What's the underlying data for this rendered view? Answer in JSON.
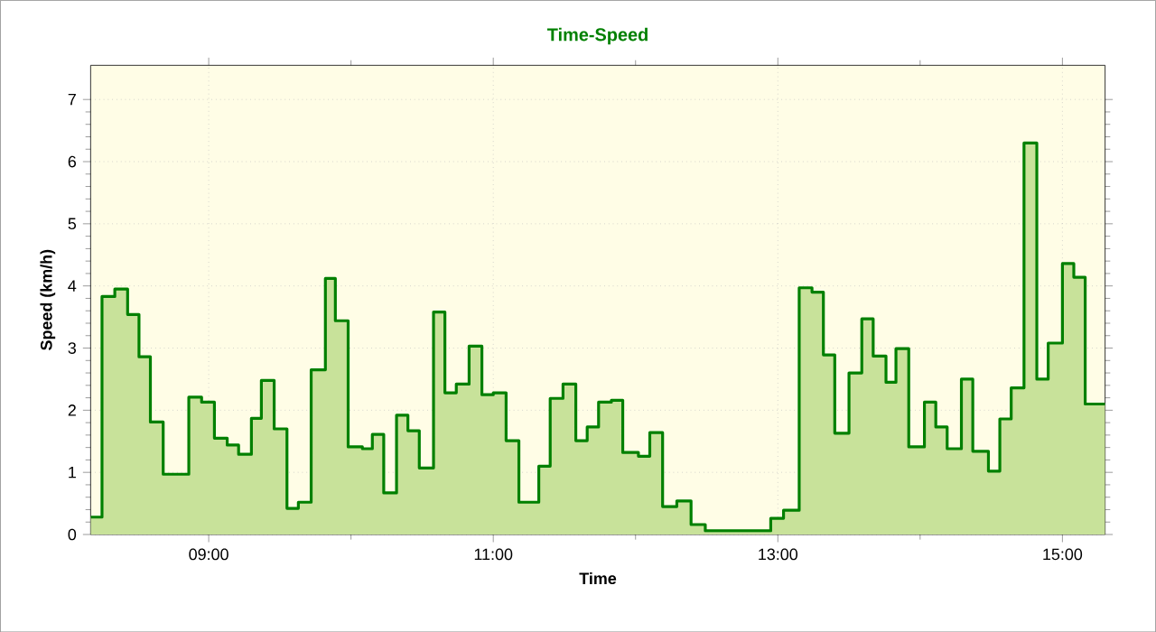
{
  "chart_data": {
    "type": "area",
    "title": "Time-Speed",
    "xlabel": "Time",
    "ylabel": "Speed (km/h)",
    "x": [
      8.17,
      8.25,
      8.25,
      8.34,
      8.34,
      8.43,
      8.43,
      8.51,
      8.51,
      8.59,
      8.59,
      8.68,
      8.68,
      8.86,
      8.86,
      8.95,
      8.95,
      9.04,
      9.04,
      9.13,
      9.13,
      9.21,
      9.21,
      9.3,
      9.3,
      9.37,
      9.37,
      9.46,
      9.46,
      9.55,
      9.55,
      9.63,
      9.63,
      9.72,
      9.72,
      9.82,
      9.82,
      9.89,
      9.89,
      9.98,
      9.98,
      10.08,
      10.08,
      10.15,
      10.15,
      10.23,
      10.23,
      10.32,
      10.32,
      10.4,
      10.4,
      10.48,
      10.48,
      10.58,
      10.58,
      10.66,
      10.66,
      10.74,
      10.74,
      10.83,
      10.83,
      10.92,
      10.92,
      11.0,
      11.0,
      11.09,
      11.09,
      11.18,
      11.18,
      11.32,
      11.32,
      11.4,
      11.4,
      11.49,
      11.49,
      11.58,
      11.58,
      11.66,
      11.66,
      11.74,
      11.74,
      11.83,
      11.83,
      11.91,
      11.91,
      12.02,
      12.02,
      12.1,
      12.1,
      12.19,
      12.19,
      12.29,
      12.29,
      12.39,
      12.39,
      12.49,
      12.49,
      12.95,
      12.95,
      13.04,
      13.04,
      13.15,
      13.15,
      13.24,
      13.24,
      13.32,
      13.32,
      13.4,
      13.4,
      13.5,
      13.5,
      13.59,
      13.59,
      13.67,
      13.67,
      13.76,
      13.76,
      13.83,
      13.83,
      13.92,
      13.92,
      14.03,
      14.03,
      14.11,
      14.11,
      14.19,
      14.19,
      14.29,
      14.29,
      14.37,
      14.37,
      14.48,
      14.48,
      14.56,
      14.56,
      14.64,
      14.64,
      14.73,
      14.73,
      14.82,
      14.82,
      14.9,
      14.9,
      15.0,
      15.0,
      15.08,
      15.08,
      15.16,
      15.16,
      15.3
    ],
    "series": [
      {
        "color": "#008000",
        "values": [
          0.28,
          0.28,
          3.83,
          3.83,
          3.95,
          3.95,
          3.54,
          3.54,
          2.86,
          2.86,
          1.81,
          1.81,
          0.97,
          0.97,
          2.21,
          2.21,
          2.13,
          2.13,
          1.55,
          1.55,
          1.44,
          1.44,
          1.29,
          1.29,
          1.87,
          1.87,
          2.48,
          2.48,
          1.7,
          1.7,
          0.42,
          0.42,
          0.52,
          0.52,
          2.65,
          2.65,
          4.12,
          4.12,
          3.44,
          3.44,
          1.41,
          1.41,
          1.38,
          1.38,
          1.61,
          1.61,
          0.67,
          0.67,
          1.92,
          1.92,
          1.67,
          1.67,
          1.07,
          1.07,
          3.58,
          3.58,
          2.28,
          2.28,
          2.42,
          2.42,
          3.03,
          3.03,
          2.25,
          2.25,
          2.28,
          2.28,
          1.51,
          1.51,
          0.52,
          0.52,
          1.1,
          1.1,
          2.19,
          2.19,
          2.42,
          2.42,
          1.51,
          1.51,
          1.73,
          1.73,
          2.13,
          2.13,
          2.16,
          2.16,
          1.32,
          1.32,
          1.26,
          1.26,
          1.64,
          1.64,
          0.45,
          0.45,
          0.54,
          0.54,
          0.16,
          0.16,
          0.06,
          0.06,
          0.26,
          0.26,
          0.39,
          0.39,
          3.97,
          3.97,
          3.9,
          3.9,
          2.89,
          2.89,
          1.63,
          1.63,
          2.6,
          2.6,
          3.47,
          3.47,
          2.87,
          2.87,
          2.45,
          2.45,
          2.99,
          2.99,
          1.41,
          1.41,
          2.13,
          2.13,
          1.73,
          1.73,
          1.38,
          1.38,
          2.5,
          2.5,
          1.34,
          1.34,
          1.02,
          1.02,
          1.86,
          1.86,
          2.36,
          2.36,
          6.3,
          6.3,
          2.5,
          2.5,
          3.08,
          3.08,
          4.36,
          4.36,
          4.14,
          4.14,
          2.1,
          2.1
        ]
      }
    ],
    "xlim": [
      8.17,
      15.3
    ],
    "xticks": [
      {
        "value": 9,
        "label": "09:00"
      },
      {
        "value": 11,
        "label": "11:00"
      },
      {
        "value": 13,
        "label": "13:00"
      },
      {
        "value": 15,
        "label": "15:00"
      }
    ],
    "ylim": [
      0,
      7.55
    ],
    "yticks": [
      0,
      1,
      2,
      3,
      4,
      5,
      6,
      7
    ],
    "grid": true,
    "marker": "none",
    "line_style": "solid"
  }
}
